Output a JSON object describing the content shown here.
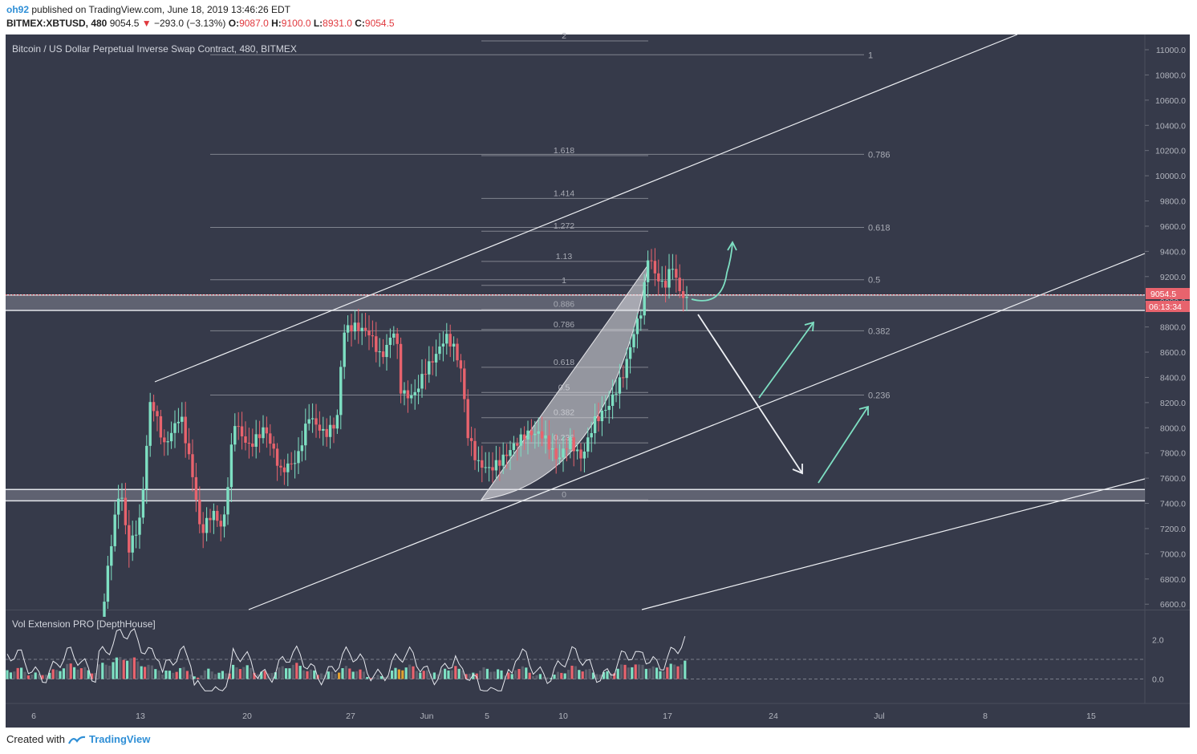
{
  "header": {
    "user": "oh92",
    "published": " published on TradingView.com, June 18, 2019 13:46:26 EDT",
    "symbol": "BITMEX:XBTUSD, 480",
    "last": "9054.5",
    "arrow": "▼",
    "change": "−293.0 (−3.13%)",
    "o_label": "O:",
    "o_val": "9087.0",
    "h_label": "H:",
    "h_val": "9100.0",
    "l_label": "L:",
    "l_val": "8931.0",
    "c_label": "C:",
    "c_val": "9054.5"
  },
  "chart_title": "Bitcoin / US Dollar Perpetual Inverse Swap Contract, 480, BITMEX",
  "indicator_title": "Vol Extension PRO [DepthHouse]",
  "price_badge": "9054.5",
  "timer_badge": "06:13:34",
  "footer": {
    "created": "Created with",
    "brand": "TradingView"
  },
  "colors": {
    "background": "#363a4a",
    "up": "#7ee0c3",
    "down": "#e8636d",
    "text": "#b2b5be",
    "accent": "#2f8fd6"
  },
  "chart_data": {
    "type": "candlestick",
    "interval": "480",
    "y_axis": {
      "range": [
        6500,
        11100
      ],
      "ticks": [
        11000,
        10800,
        10600,
        10400,
        10200,
        10000,
        9800,
        9600,
        9400,
        9200,
        9000,
        8800,
        8600,
        8400,
        8200,
        8000,
        7800,
        7600,
        7400,
        7200,
        7000,
        6800,
        6600
      ]
    },
    "x_axis": {
      "labels": [
        "6",
        "13",
        "20",
        "27",
        "Jun",
        "5",
        "10",
        "17",
        "24",
        "Jul",
        "8",
        "15"
      ]
    },
    "fib_levels_large": [
      "1",
      "0.786",
      "0.618",
      "0.5",
      "0.382",
      "0.236"
    ],
    "fib_levels_small": [
      "2",
      "1.618",
      "1.414",
      "1.272",
      "1.13",
      "1",
      "0.886",
      "0.786",
      "0.618",
      "0.5",
      "0.382",
      "0.236",
      "0"
    ],
    "indicator_axis": {
      "ticks": [
        "2.0",
        "0.0"
      ]
    },
    "zones": [
      [
        8931,
        9054
      ],
      [
        7420,
        7510
      ]
    ],
    "last_price": 9054.5
  }
}
